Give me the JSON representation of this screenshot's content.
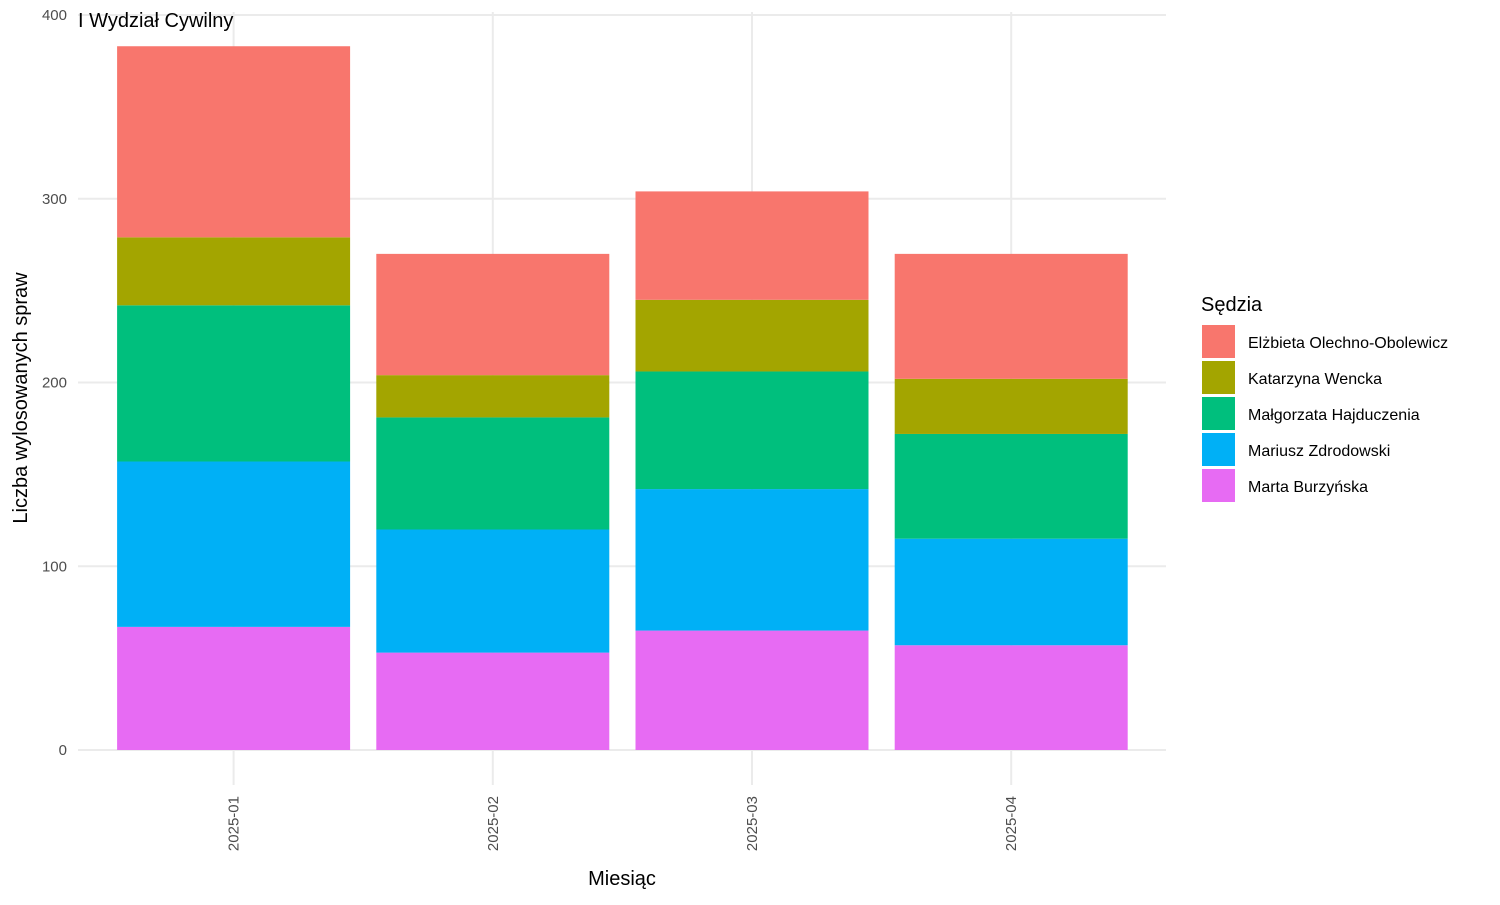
{
  "chart_data": {
    "type": "bar",
    "stacked": true,
    "title": "I Wydział Cywilny",
    "xlabel": "Miesiąc",
    "ylabel": "Liczba wylosowanych spraw",
    "categories": [
      "2025-01",
      "2025-02",
      "2025-03",
      "2025-04"
    ],
    "ylim": [
      0,
      400
    ],
    "yticks": [
      0,
      100,
      200,
      300,
      400
    ],
    "grid": true,
    "legend": {
      "title": "Sędzia",
      "position": "right"
    },
    "series": [
      {
        "name": "Marta Burzyńska",
        "color": "#E76BF3",
        "values": [
          67,
          53,
          65,
          57
        ]
      },
      {
        "name": "Mariusz Zdrodowski",
        "color": "#00B0F6",
        "values": [
          90,
          67,
          77,
          58
        ]
      },
      {
        "name": "Małgorzata Hajduczenia",
        "color": "#00BF7D",
        "values": [
          85,
          61,
          64,
          57
        ]
      },
      {
        "name": "Katarzyna Wencka",
        "color": "#A3A500",
        "values": [
          37,
          23,
          39,
          30
        ]
      },
      {
        "name": "Elżbieta Olechno-Obolewicz",
        "color": "#F8766D",
        "values": [
          104,
          66,
          59,
          68
        ]
      }
    ]
  }
}
